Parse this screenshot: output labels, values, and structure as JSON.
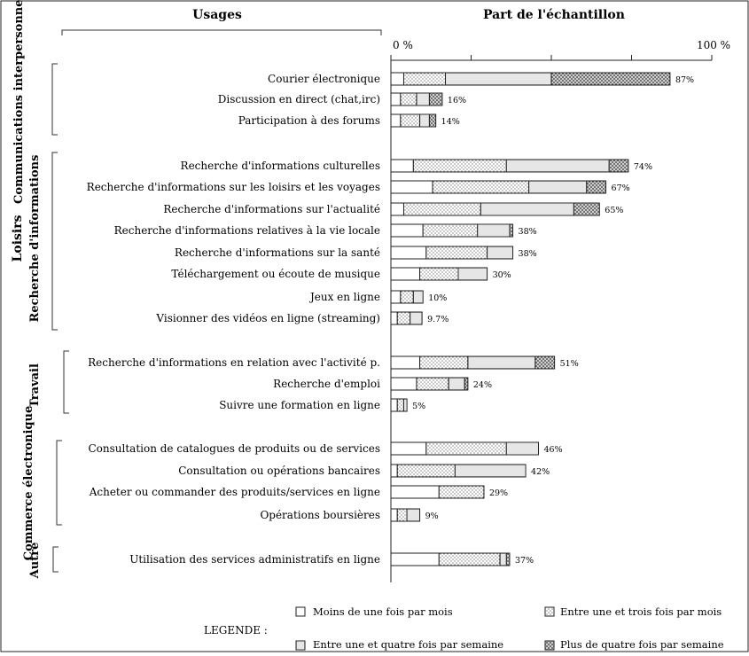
{
  "chart_data": {
    "type": "bar",
    "stacked": true,
    "orientation": "horizontal",
    "title_left": "Usages",
    "title_right": "Part de l'échantillon",
    "xlim": [
      0,
      100
    ],
    "x_tick_labels": [
      "0 %",
      "100 %"
    ],
    "x_tick_values": [
      0,
      25,
      50,
      75,
      100
    ],
    "legend_title": "LEGENDE :",
    "legend_position": "bottom",
    "series": [
      {
        "name": "Moins de une fois par mois",
        "pattern": "white"
      },
      {
        "name": "Entre une et trois fois par mois",
        "pattern": "dots"
      },
      {
        "name": "Entre une et quatre fois par semaine",
        "pattern": "light-grid"
      },
      {
        "name": "Plus de quatre fois par semaine",
        "pattern": "dark-grid"
      }
    ],
    "groups": [
      {
        "label": "Communications interpersonnelles",
        "rows": [
          0,
          2
        ]
      },
      {
        "label": "Loisirs",
        "rows": [
          3,
          9
        ]
      },
      {
        "label": "Recherche d'informations",
        "rows": [
          3,
          9
        ]
      },
      {
        "label": "Travail",
        "rows": [
          10,
          12
        ]
      },
      {
        "label": "Commerce électronique",
        "rows": [
          13,
          16
        ]
      },
      {
        "label": "Autre",
        "rows": [
          17,
          17
        ]
      }
    ],
    "categories": [
      "Courier électronique",
      "Discussion en direct (chat,irc)",
      "Participation à des forums",
      "Recherche d'informations culturelles",
      "Recherche d'informations sur les loisirs et les voyages",
      "Recherche d'informations sur l'actualité",
      "Recherche d'informations relatives à la vie locale",
      "Recherche d'informations sur la santé",
      "Téléchargement ou écoute de musique",
      "Jeux en ligne",
      "Visionner des vidéos en ligne (streaming)",
      "Recherche d'informations en relation avec l'activité p.",
      "Recherche d'emploi",
      "Suivre une formation en ligne",
      "Consultation de catalogues de produits ou de services",
      "Consultation ou opérations bancaires",
      "Acheter ou commander des produits/services en ligne",
      "Opérations boursières",
      "Utilisation des services administratifs en ligne"
    ],
    "totals_labels": [
      "87%",
      "16%",
      "14%",
      "74%",
      "67%",
      "65%",
      "38%",
      "38%",
      "30%",
      "10%",
      "9.7%",
      "51%",
      "24%",
      "5%",
      "46%",
      "42%",
      "29%",
      "9%",
      "37%"
    ],
    "segments": [
      [
        4,
        13,
        33,
        37
      ],
      [
        3,
        5,
        4,
        4
      ],
      [
        3,
        6,
        3,
        2
      ],
      [
        7,
        29,
        32,
        6
      ],
      [
        13,
        30,
        18,
        6
      ],
      [
        4,
        24,
        29,
        8
      ],
      [
        10,
        17,
        10,
        1
      ],
      [
        11,
        19,
        8,
        0
      ],
      [
        9,
        12,
        9,
        0
      ],
      [
        3,
        4,
        3,
        0
      ],
      [
        2,
        4,
        3.7,
        0
      ],
      [
        9,
        15,
        21,
        6
      ],
      [
        8,
        10,
        5,
        1
      ],
      [
        2,
        2,
        1,
        0
      ],
      [
        11,
        25,
        10,
        0
      ],
      [
        2,
        18,
        22,
        0
      ],
      [
        15,
        14,
        0,
        0
      ],
      [
        2,
        3,
        4,
        0
      ],
      [
        15,
        19,
        2,
        1
      ]
    ]
  }
}
